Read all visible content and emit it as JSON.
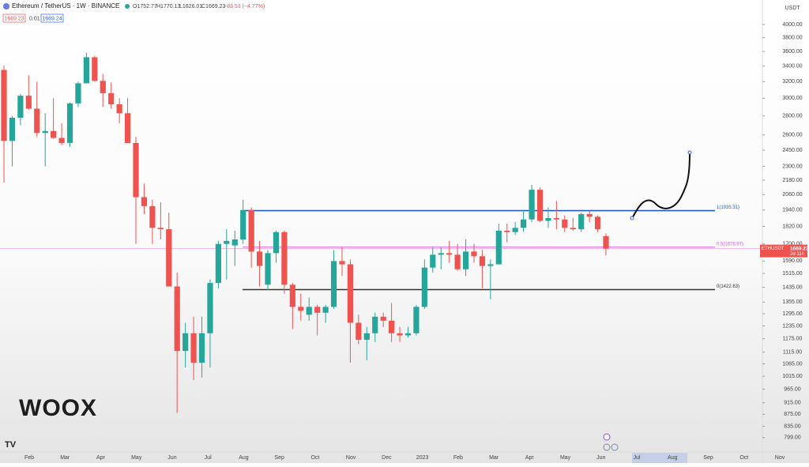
{
  "header": {
    "symbol": "Ethereum / TetherUS · 1W · BINANCE",
    "ohlc": [
      "O1752.77",
      "H1770.13",
      "L1626.01",
      "C1669.23",
      "−83.53 (−4.77%)"
    ],
    "boxes": [
      "1669.23",
      "0.01",
      "1669.24"
    ]
  },
  "watermark": "WOOX",
  "chart_data": {
    "type": "candlestick",
    "currency": "USDT",
    "up_color": "#26a69a",
    "down_color": "#ef5350",
    "log_scale": true,
    "open": [
      3350,
      2540,
      2780,
      3030,
      2880,
      2620,
      2640,
      2570,
      2520,
      2940,
      3180,
      3520,
      3210,
      3060,
      2930,
      2830,
      2520,
      2040,
      1970,
      1810,
      1800,
      1440,
      1120,
      1200,
      1070,
      1200,
      1460,
      1700,
      1690,
      1730,
      1940,
      1650,
      1450,
      1640,
      1780,
      1450,
      1330,
      1290,
      1330,
      1300,
      1330,
      1590,
      1570,
      1250,
      1170,
      1200,
      1280,
      1260,
      1200,
      1190,
      1200,
      1330,
      1550,
      1630,
      1640,
      1630,
      1540,
      1650,
      1620,
      1560,
      1570,
      1790,
      1780,
      1810,
      1870,
      2100,
      1860,
      1880,
      1870,
      1810,
      1800,
      1910,
      1890,
      1752.77
    ],
    "high": [
      3410,
      2800,
      3050,
      3280,
      3200,
      2830,
      3000,
      2720,
      2950,
      3200,
      3580,
      3540,
      3300,
      3190,
      3000,
      3000,
      2580,
      2150,
      2020,
      2000,
      1920,
      1520,
      1250,
      1280,
      1280,
      1480,
      1720,
      1800,
      1790,
      2020,
      1960,
      1720,
      1660,
      1790,
      1790,
      1460,
      1400,
      1380,
      1340,
      1340,
      1660,
      1680,
      1600,
      1290,
      1230,
      1300,
      1300,
      1350,
      1230,
      1230,
      1340,
      1600,
      1680,
      1680,
      1720,
      1700,
      1730,
      1700,
      1660,
      1600,
      1840,
      1840,
      1850,
      1940,
      2140,
      2120,
      1960,
      2010,
      1900,
      1880,
      1920,
      1930,
      1900,
      1770.13
    ],
    "low": [
      2160,
      2300,
      2700,
      2870,
      2580,
      2300,
      2560,
      2500,
      2480,
      2900,
      3180,
      3200,
      2900,
      2880,
      2720,
      2520,
      1700,
      1910,
      1700,
      1730,
      1440,
      880,
      1050,
      1000,
      1010,
      1050,
      1430,
      1480,
      1560,
      1700,
      1550,
      1440,
      1420,
      1580,
      1400,
      1220,
      1260,
      1260,
      1190,
      1250,
      1320,
      1500,
      1070,
      1150,
      1080,
      1160,
      1230,
      1160,
      1160,
      1180,
      1190,
      1320,
      1520,
      1540,
      1580,
      1530,
      1500,
      1580,
      1430,
      1370,
      1570,
      1710,
      1760,
      1780,
      1850,
      1850,
      1810,
      1800,
      1780,
      1790,
      1780,
      1850,
      1780,
      1626.01
    ],
    "close": [
      2540,
      2780,
      3030,
      2880,
      2620,
      2640,
      2570,
      2520,
      2940,
      3180,
      3520,
      3210,
      3060,
      2930,
      2830,
      2520,
      2040,
      1970,
      1810,
      1800,
      1440,
      1120,
      1200,
      1070,
      1200,
      1460,
      1700,
      1720,
      1730,
      1940,
      1650,
      1560,
      1640,
      1780,
      1450,
      1330,
      1310,
      1330,
      1300,
      1330,
      1590,
      1570,
      1250,
      1170,
      1200,
      1280,
      1260,
      1200,
      1190,
      1200,
      1330,
      1550,
      1630,
      1640,
      1630,
      1540,
      1650,
      1620,
      1560,
      1570,
      1790,
      1780,
      1810,
      1870,
      2100,
      1860,
      1880,
      1870,
      1810,
      1800,
      1910,
      1890,
      1800,
      1669.23
    ],
    "ylim": [
      760,
      4400
    ],
    "yticks": [
      {
        "value": 4000,
        "label": "4000.00"
      },
      {
        "value": 3800,
        "label": "3800.00"
      },
      {
        "value": 3600,
        "label": "3600.00"
      },
      {
        "value": 3400,
        "label": "3400.00"
      },
      {
        "value": 3200,
        "label": "3200.00"
      },
      {
        "value": 3000,
        "label": "3000.00"
      },
      {
        "value": 2800,
        "label": "2800.00"
      },
      {
        "value": 2600,
        "label": "2600.00"
      },
      {
        "value": 2450,
        "label": "2450.00"
      },
      {
        "value": 2300,
        "label": "2300.00"
      },
      {
        "value": 2180,
        "label": "2180.00"
      },
      {
        "value": 2060,
        "label": "2060.00"
      },
      {
        "value": 1940,
        "label": "1940.00"
      },
      {
        "value": 1820,
        "label": "1820.00"
      },
      {
        "value": 1700,
        "label": "1700.00"
      },
      {
        "value": 1590,
        "label": "1590.00"
      },
      {
        "value": 1515,
        "label": "1515.00"
      },
      {
        "value": 1435,
        "label": "1435.00"
      },
      {
        "value": 1355,
        "label": "1355.00"
      },
      {
        "value": 1295,
        "label": "1295.00"
      },
      {
        "value": 1235,
        "label": "1235.00"
      },
      {
        "value": 1175,
        "label": "1175.00"
      },
      {
        "value": 1115,
        "label": "1115.00"
      },
      {
        "value": 1065,
        "label": "1065.00"
      },
      {
        "value": 1015,
        "label": "1015.00"
      },
      {
        "value": 965,
        "label": "965.00"
      },
      {
        "value": 915,
        "label": "915.00"
      },
      {
        "value": 875,
        "label": "875.00"
      },
      {
        "value": 835,
        "label": "835.00"
      },
      {
        "value": 799,
        "label": "799.00"
      }
    ],
    "x_labels": [
      "Feb",
      "Mar",
      "Apr",
      "May",
      "Jun",
      "Jul",
      "Aug",
      "Sep",
      "Oct",
      "Nov",
      "Dec",
      "2023",
      "Feb",
      "Mar",
      "Apr",
      "May",
      "Jun",
      "Jul",
      "Aug",
      "Sep",
      "Oct",
      "Nov"
    ],
    "levels": [
      {
        "label": "1(1935.31)",
        "value": 1935.31,
        "color": "#1e5bc6"
      },
      {
        "label": "0.5(1678.97)",
        "value": 1678.97,
        "color": "#d85fd8"
      },
      {
        "label": "0(1422.63)",
        "value": 1422.63,
        "color": "#333333"
      }
    ],
    "price_tag": {
      "symbol": "ETHUSDT",
      "price": "1669.23",
      "countdown": "2d 11h"
    }
  }
}
